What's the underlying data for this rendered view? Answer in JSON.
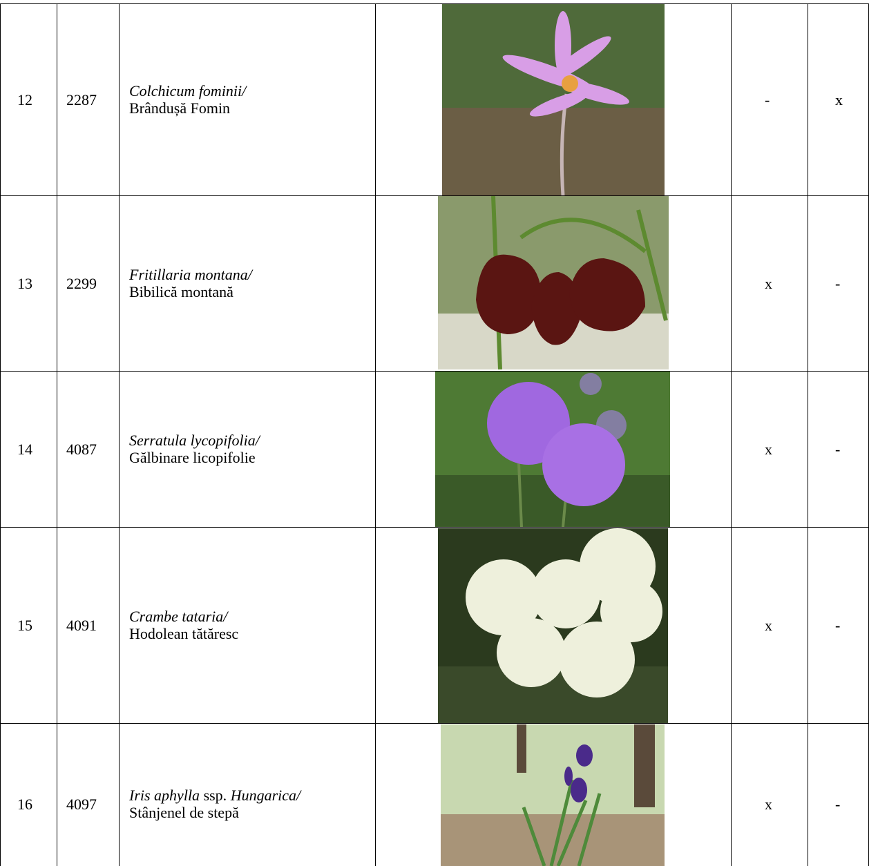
{
  "table": {
    "rows": [
      {
        "nr": "12",
        "code": "2287",
        "latin": [
          {
            "text": "Colchicum fominii/",
            "italic": true
          }
        ],
        "common": "Brândușă Fomin",
        "marks": [
          "-",
          "x"
        ]
      },
      {
        "nr": "13",
        "code": "2299",
        "latin": [
          {
            "text": "Fritillaria montana/",
            "italic": true
          }
        ],
        "common": "Bibilică montană",
        "marks": [
          "x",
          "-"
        ]
      },
      {
        "nr": "14",
        "code": "4087",
        "latin": [
          {
            "text": "Serratula lycopifolia/",
            "italic": true
          }
        ],
        "common": "Gălbinare licopifolie",
        "marks": [
          "x",
          "-"
        ]
      },
      {
        "nr": "15",
        "code": "4091",
        "latin": [
          {
            "text": "Crambe tataria/",
            "italic": true
          }
        ],
        "common": "Hodolean tătăresc",
        "marks": [
          "x",
          "-"
        ]
      },
      {
        "nr": "16",
        "code": "4097",
        "latin": [
          {
            "text": "Iris aphylla",
            "italic": true
          },
          {
            "text": " ssp. ",
            "italic": false
          },
          {
            "text": "Hungarica/",
            "italic": true
          }
        ],
        "common": "Stânjenel de stepă",
        "marks": [
          "x",
          "-"
        ]
      }
    ]
  }
}
